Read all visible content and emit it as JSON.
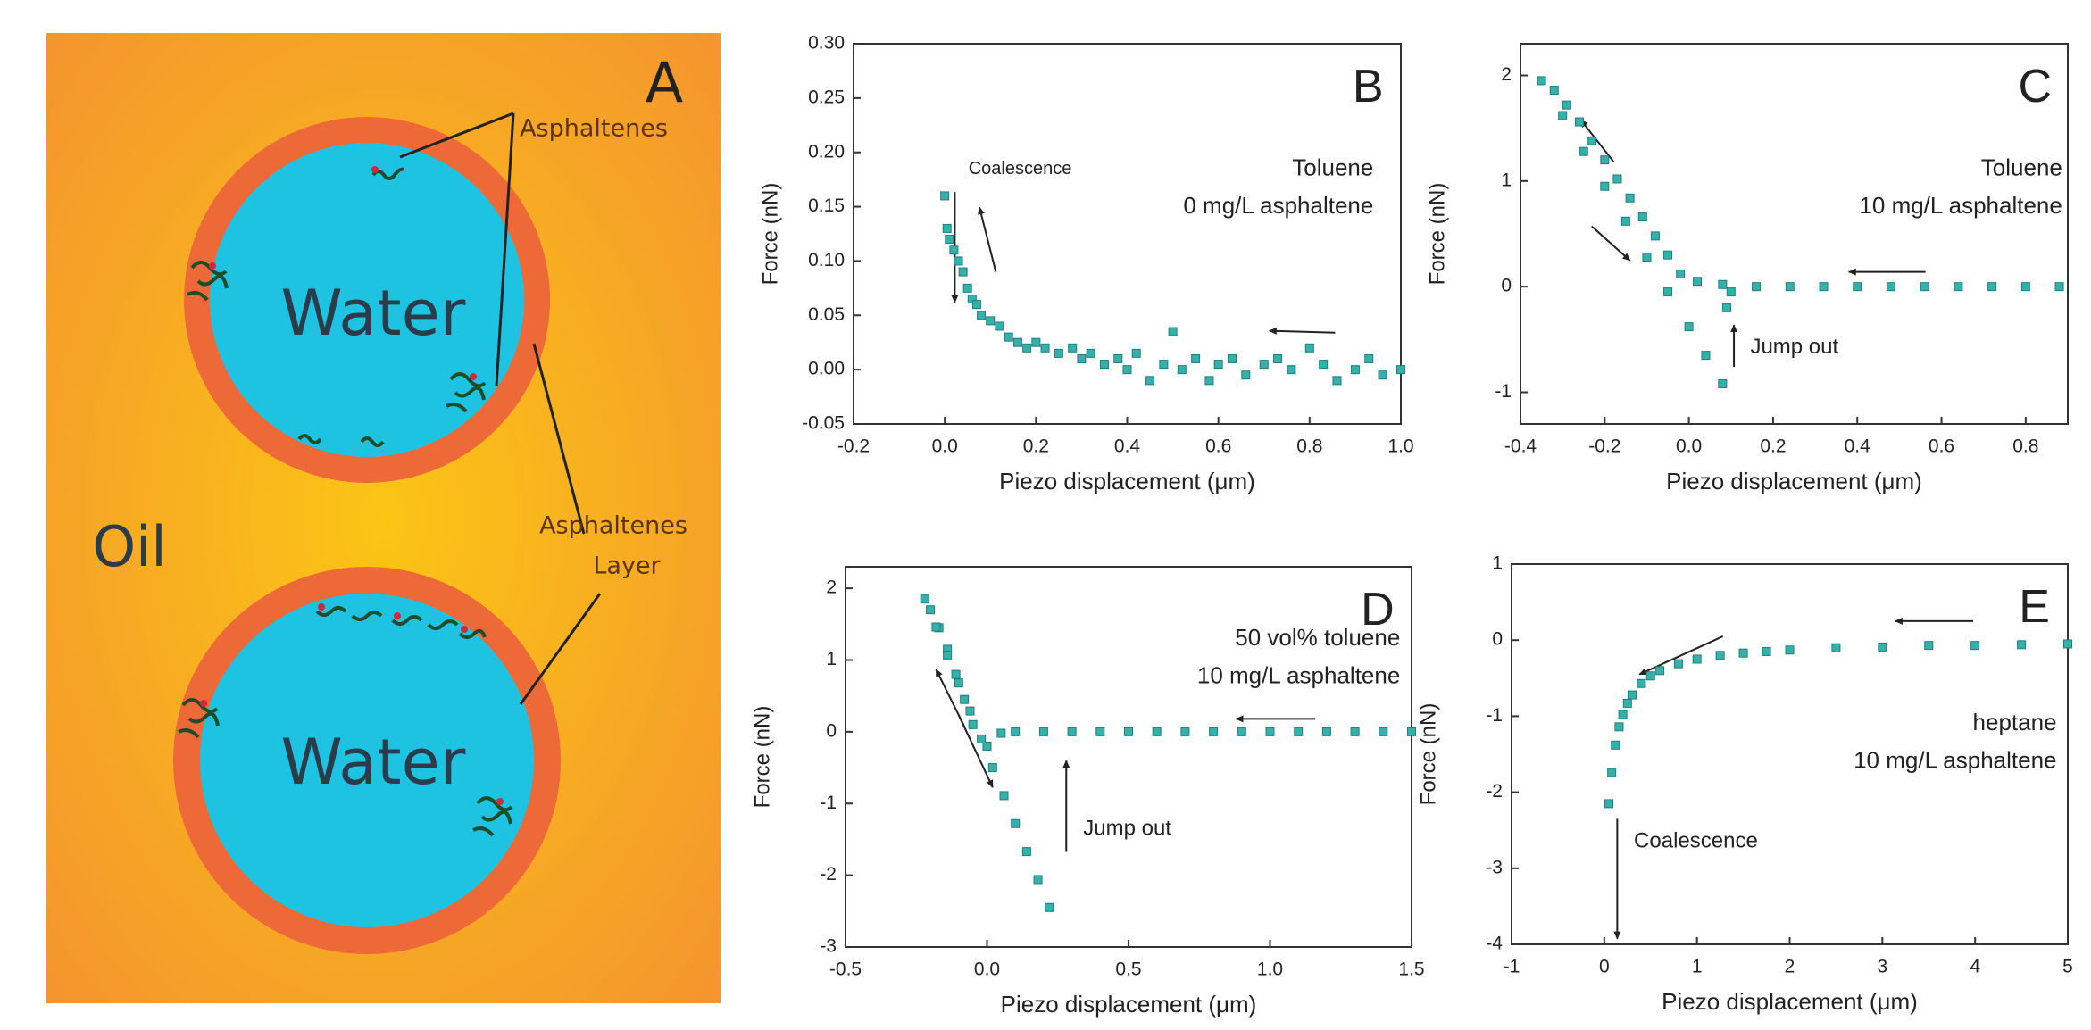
{
  "diagram": {
    "label": "A",
    "oil": "Oil",
    "water": [
      "Water",
      "Water"
    ],
    "asphaltenes": "Asphaltenes",
    "layer": [
      "Asphaltenes",
      "Layer"
    ]
  },
  "chart_data": [
    {
      "type": "scatter",
      "panel": "B",
      "annotations": [
        "Coalescence",
        "Toluene",
        "0 mg/L asphaltene"
      ],
      "xlabel": "Piezo displacement (μm)",
      "ylabel": "Force (nN)",
      "color": "#36b0ab",
      "xlim": [
        -0.2,
        1.0
      ],
      "ylim": [
        -0.05,
        0.3
      ],
      "xticks": [
        -0.2,
        {
          "value": 0,
          "label": "0.0"
        },
        0.2,
        0.4,
        0.6,
        0.8,
        {
          "value": 1,
          "label": "1.0"
        }
      ],
      "yticks": [
        -0.05,
        {
          "value": 0,
          "label": "0.00"
        },
        0.05,
        {
          "value": 0.1,
          "label": "0.10"
        },
        0.15,
        {
          "value": 0.2,
          "label": "0.20"
        },
        0.25,
        {
          "value": 0.3,
          "label": "0.30"
        }
      ],
      "x": [
        0,
        0.005,
        0.01,
        0.02,
        0.03,
        0.04,
        0.05,
        0.06,
        0.07,
        0.08,
        0.1,
        0.12,
        0.14,
        0.16,
        0.18,
        0.2,
        0.22,
        0.25,
        0.28,
        0.3,
        0.32,
        0.35,
        0.38,
        0.4,
        0.42,
        0.45,
        0.48,
        0.5,
        0.52,
        0.55,
        0.58,
        0.6,
        0.63,
        0.66,
        0.7,
        0.73,
        0.76,
        0.8,
        0.83,
        0.86,
        0.9,
        0.93,
        0.96,
        1.0
      ],
      "values": [
        0.16,
        0.13,
        0.12,
        0.11,
        0.1,
        0.09,
        0.075,
        0.065,
        0.06,
        0.05,
        0.045,
        0.04,
        0.03,
        0.025,
        0.02,
        0.025,
        0.02,
        0.015,
        0.02,
        0.01,
        0.015,
        0.005,
        0.01,
        0,
        0.015,
        -0.01,
        0.005,
        0.035,
        0,
        0.01,
        -0.01,
        0.005,
        0.01,
        -0.005,
        0.005,
        0.01,
        0,
        0.02,
        0.005,
        -0.01,
        0,
        0.01,
        -0.005,
        0
      ]
    },
    {
      "type": "scatter",
      "panel": "C",
      "annotations": [
        "Toluene",
        "10 mg/L asphaltene",
        "Jump out"
      ],
      "xlabel": "Piezo displacement (μm)",
      "ylabel": "Force (nN)",
      "color": "#36b0ab",
      "xlim": [
        -0.4,
        0.9
      ],
      "ylim": [
        -1.3,
        2.3
      ],
      "xticks": [
        -0.4,
        -0.2,
        {
          "value": 0,
          "label": "0.0"
        },
        0.2,
        0.4,
        0.6,
        0.8
      ],
      "yticks": [
        -1,
        0,
        1,
        2
      ],
      "x": [
        0.88,
        0.8,
        0.72,
        0.64,
        0.56,
        0.48,
        0.4,
        0.32,
        0.24,
        0.16,
        0.08,
        0.02,
        -0.02,
        -0.05,
        -0.08,
        -0.11,
        -0.14,
        -0.17,
        -0.2,
        -0.23,
        -0.26,
        -0.29,
        -0.32,
        -0.35,
        -0.3,
        -0.25,
        -0.2,
        -0.15,
        -0.1,
        -0.05,
        0,
        0.04,
        0.08,
        0.09,
        0.1
      ],
      "values": [
        0,
        0,
        0,
        0,
        0,
        0,
        0,
        0,
        0,
        0,
        0.02,
        0.05,
        0.12,
        0.3,
        0.48,
        0.66,
        0.84,
        1.02,
        1.2,
        1.38,
        1.56,
        1.72,
        1.86,
        1.95,
        1.62,
        1.28,
        0.95,
        0.62,
        0.28,
        -0.05,
        -0.38,
        -0.65,
        -0.92,
        -0.2,
        -0.05
      ]
    },
    {
      "type": "scatter",
      "panel": "D",
      "annotations": [
        "50 vol% toluene",
        "10 mg/L asphaltene",
        "Jump out"
      ],
      "xlabel": "Piezo displacement (μm)",
      "ylabel": "Force (nN)",
      "color": "#36b0ab",
      "xlim": [
        -0.5,
        1.5
      ],
      "ylim": [
        -3,
        2.3
      ],
      "xticks": [
        -0.5,
        {
          "value": 0,
          "label": "0.0"
        },
        0.5,
        {
          "value": 1,
          "label": "1.0"
        },
        1.5
      ],
      "yticks": [
        -3,
        -2,
        -1,
        0,
        1,
        2
      ],
      "x": [
        1.5,
        1.4,
        1.3,
        1.2,
        1.1,
        1.0,
        0.9,
        0.8,
        0.7,
        0.6,
        0.5,
        0.4,
        0.3,
        0.2,
        0.1,
        0.05,
        0.0,
        -0.05,
        -0.08,
        -0.11,
        -0.14,
        -0.17,
        -0.2,
        -0.22,
        -0.18,
        -0.14,
        -0.1,
        -0.06,
        -0.02,
        0.02,
        0.06,
        0.1,
        0.14,
        0.18,
        0.22
      ],
      "values": [
        0,
        0,
        0,
        0,
        0,
        0,
        0,
        0,
        0,
        0,
        0,
        0,
        0,
        0,
        0,
        -0.02,
        -0.2,
        0.1,
        0.45,
        0.8,
        1.15,
        1.45,
        1.7,
        1.85,
        1.46,
        1.07,
        0.68,
        0.29,
        -0.1,
        -0.5,
        -0.89,
        -1.28,
        -1.67,
        -2.06,
        -2.45
      ]
    },
    {
      "type": "scatter",
      "panel": "E",
      "annotations": [
        "heptane",
        "10 mg/L asphaltene",
        "Coalescence"
      ],
      "xlabel": "Piezo displacement (μm)",
      "ylabel": "Force (nN)",
      "color": "#36b0ab",
      "xlim": [
        -1,
        5
      ],
      "ylim": [
        -4,
        1
      ],
      "xticks": [
        -1,
        0,
        1,
        2,
        3,
        4,
        5
      ],
      "yticks": [
        -4,
        -3,
        -2,
        -1,
        0,
        1
      ],
      "x": [
        0.05,
        0.08,
        0.12,
        0.16,
        0.2,
        0.25,
        0.3,
        0.4,
        0.5,
        0.6,
        0.8,
        1.0,
        1.25,
        1.5,
        1.75,
        2,
        2.5,
        3,
        3.5,
        4,
        4.5,
        5
      ],
      "values": [
        -2.15,
        -1.74,
        -1.38,
        -1.14,
        -0.98,
        -0.83,
        -0.72,
        -0.57,
        -0.47,
        -0.4,
        -0.31,
        -0.25,
        -0.2,
        -0.17,
        -0.15,
        -0.13,
        -0.1,
        -0.09,
        -0.07,
        -0.07,
        -0.06,
        -0.05
      ]
    }
  ]
}
